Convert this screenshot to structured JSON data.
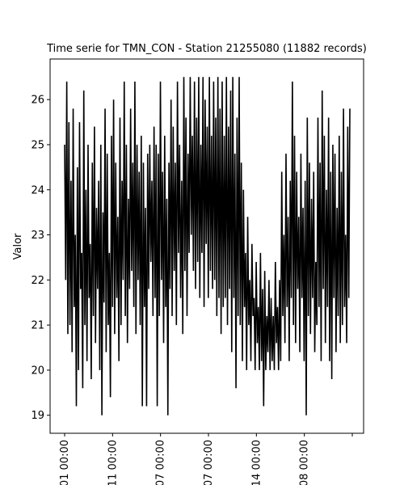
{
  "chart_data": {
    "type": "line",
    "title": "Time serie for TMN_CON - Station 21255080 (11882 records)",
    "xlabel": "",
    "ylabel": "Valor",
    "series_color": "#000000",
    "ylim": [
      18.6,
      26.9
    ],
    "yticks": [
      19,
      20,
      21,
      22,
      23,
      24,
      25,
      26
    ],
    "xticks": [
      "01 00:00",
      "11 00:00",
      "07 00:00",
      "07 00:00",
      "14 00:00",
      "08 00:00",
      ""
    ],
    "grid": false,
    "series": [
      {
        "name": "",
        "values": [
          25.0,
          22.0,
          26.4,
          20.8,
          25.5,
          21.0,
          24.2,
          20.4,
          25.8,
          21.4,
          23.0,
          19.2,
          24.5,
          20.0,
          25.5,
          21.8,
          22.6,
          19.6,
          26.2,
          21.0,
          24.0,
          20.2,
          25.0,
          21.6,
          22.8,
          19.8,
          24.6,
          21.2,
          25.4,
          20.6,
          23.6,
          21.8,
          24.2,
          20.0,
          25.0,
          19.0,
          23.5,
          21.5,
          25.8,
          20.4,
          24.8,
          21.0,
          22.6,
          19.4,
          25.2,
          21.4,
          26.0,
          20.8,
          24.6,
          21.6,
          23.4,
          20.2,
          25.6,
          21.0,
          24.2,
          22.0,
          26.4,
          21.2,
          25.0,
          20.6,
          23.8,
          21.8,
          25.8,
          22.2,
          24.6,
          21.4,
          26.4,
          20.8,
          25.0,
          22.0,
          24.4,
          21.0,
          25.2,
          19.2,
          24.6,
          21.4,
          23.6,
          19.2,
          24.8,
          21.8,
          25.0,
          22.4,
          24.2,
          21.2,
          25.4,
          21.6,
          25.0,
          19.2,
          24.8,
          21.2,
          26.4,
          22.0,
          24.4,
          20.6,
          25.2,
          21.4,
          23.8,
          19.0,
          24.6,
          21.8,
          26.0,
          21.2,
          25.4,
          22.2,
          24.6,
          21.0,
          26.4,
          22.6,
          25.0,
          21.6,
          24.2,
          20.8,
          26.5,
          22.2,
          25.6,
          21.2,
          24.8,
          22.6,
          26.5,
          23.0,
          25.2,
          22.2,
          26.4,
          21.8,
          25.6,
          22.4,
          26.5,
          21.6,
          25.0,
          22.6,
          26.5,
          21.4,
          26.0,
          22.8,
          25.4,
          21.6,
          26.5,
          22.2,
          25.2,
          21.8,
          26.4,
          22.0,
          25.6,
          21.2,
          26.5,
          21.6,
          25.8,
          20.8,
          26.4,
          21.4,
          25.2,
          21.6,
          26.5,
          21.0,
          25.4,
          21.8,
          26.2,
          20.4,
          26.5,
          21.6,
          24.8,
          19.6,
          25.6,
          21.2,
          26.5,
          21.0,
          24.6,
          20.2,
          24.0,
          21.4,
          22.6,
          20.0,
          23.4,
          21.0,
          22.0,
          20.2,
          22.8,
          21.2,
          21.6,
          20.0,
          22.4,
          20.6,
          21.4,
          20.0,
          22.6,
          20.2,
          21.8,
          19.2,
          22.2,
          20.0,
          21.2,
          20.4,
          22.0,
          20.0,
          21.6,
          20.2,
          21.2,
          20.0,
          22.4,
          20.6,
          21.4,
          20.0,
          22.0,
          20.2,
          24.4,
          21.2,
          23.0,
          20.6,
          24.8,
          21.4,
          23.4,
          20.2,
          24.2,
          21.6,
          26.4,
          21.0,
          25.2,
          20.6,
          24.4,
          21.8,
          23.4,
          20.4,
          24.8,
          21.6,
          23.6,
          20.2,
          24.2,
          19.0,
          25.6,
          21.2,
          24.6,
          20.8,
          23.8,
          21.6,
          24.4,
          20.4,
          22.4,
          21.0,
          25.6,
          21.4,
          24.6,
          20.2,
          26.2,
          21.8,
          25.2,
          20.6,
          24.0,
          21.4,
          25.6,
          20.2,
          24.4,
          19.8,
          25.0,
          21.6,
          24.8,
          20.4,
          23.6,
          21.2,
          25.2,
          20.6,
          24.4,
          21.0,
          25.8,
          21.4,
          23.0,
          20.6,
          25.4,
          21.6,
          25.8
        ]
      }
    ]
  }
}
